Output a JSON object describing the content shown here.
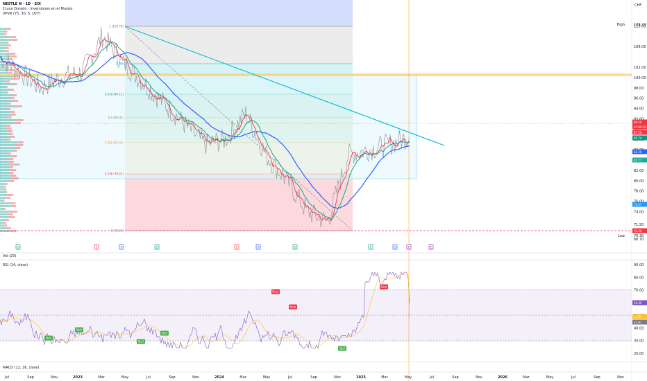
{
  "header": {
    "title": "NESTLE N · 1D · SIX",
    "indicator1": "Cruce Dorado - Inversiones en el Mundo",
    "indicator2": "VPVR (75, 30, 5, UD*)",
    "currency": "CHF",
    "vol_label": "Vol (20)",
    "rsi_label": "RSI (14, close)",
    "macd_label": "MACD (12, 26, close)"
  },
  "price_axis": {
    "ticks": [
      "110.00",
      "106.00",
      "102.00",
      "100.00",
      "98.00",
      "96.00",
      "94.00",
      "92.00",
      "90.00",
      "88.00",
      "86.00",
      "84.00",
      "82.00",
      "80.00",
      "78.00",
      "76.00",
      "74.00",
      "71.50",
      "70.30",
      "68.70"
    ],
    "high_label": "High",
    "high_value": "109.24",
    "low_label": "Low",
    "low_value": "70.30"
  },
  "price_badges": [
    {
      "text": "88.50",
      "color": "#f23645"
    },
    {
      "text": "23:06:36",
      "color": "#f23645"
    },
    {
      "text": "87.28",
      "color": "#f23645"
    },
    {
      "text": "85.74",
      "color": "#089981"
    },
    {
      "text": "83.26",
      "color": "#2962ff"
    },
    {
      "text": "81.77",
      "color": "#22ab94"
    },
    {
      "text": "74.57",
      "color": "#2196f3"
    },
    {
      "text": "70.30",
      "color": "#f23645"
    }
  ],
  "fib_levels": [
    {
      "label": "1 (109.78)",
      "color": "#787b86"
    },
    {
      "label": "0.786",
      "color": "#00bcd4"
    },
    {
      "label": "0.618 (94.15)",
      "color": "#089981"
    },
    {
      "label": "0.5 (89.92)",
      "color": "#4caf50"
    },
    {
      "label": "0.382 (85.68)",
      "color": "#ff9800"
    },
    {
      "label": "0.236 (79.41)",
      "color": "#f23645"
    },
    {
      "label": "0 (70.30)",
      "color": "#787b86"
    }
  ],
  "rsi_axis": {
    "ticks": [
      "90.00",
      "80.00",
      "70.00",
      "60.82",
      "50.00",
      "40.00",
      "30.00",
      "20.00"
    ],
    "badges": [
      {
        "text": "59.40",
        "color": "#7e57c2"
      },
      {
        "text": "47.87",
        "color": "#fbc02d"
      },
      {
        "text": "45.81",
        "color": "#787b86"
      }
    ],
    "signals": [
      {
        "text": "Bull",
        "color": "#4caf50"
      },
      {
        "text": "Bull",
        "color": "#4caf50"
      },
      {
        "text": "Bull",
        "color": "#4caf50"
      },
      {
        "text": "Bull",
        "color": "#4caf50"
      },
      {
        "text": "Bull",
        "color": "#4caf50"
      },
      {
        "text": "Bear",
        "color": "#f23645"
      },
      {
        "text": "Bear",
        "color": "#f23645"
      },
      {
        "text": "Bear",
        "color": "#f23645"
      }
    ]
  },
  "event_markers": [
    {
      "text": "D",
      "color": "#089981"
    },
    {
      "text": "E",
      "color": "#f23645"
    },
    {
      "text": "D",
      "color": "#2962ff"
    },
    {
      "text": "D",
      "color": "#089981"
    },
    {
      "text": "E",
      "color": "#f23645"
    },
    {
      "text": "D",
      "color": "#2962ff"
    },
    {
      "text": "D",
      "color": "#089981"
    },
    {
      "text": "E",
      "color": "#089981"
    },
    {
      "text": "D",
      "color": "#2962ff"
    },
    {
      "text": "E",
      "color": "#9c27b0"
    },
    {
      "text": "E",
      "color": "#9c27b0"
    }
  ],
  "time_axis": [
    "Jul",
    "Sep",
    "Nov",
    "2023",
    "Mar",
    "May",
    "Jul",
    "Sep",
    "Nov",
    "2024",
    "Mar",
    "May",
    "Jul",
    "Sep",
    "Nov",
    "2025",
    "Mar",
    "May",
    "Jul",
    "Sep",
    "Nov",
    "2026",
    "Mar",
    "May",
    "Jul",
    "Sep",
    "Nov"
  ],
  "chart_data": {
    "type": "line",
    "title": "NESTLE N · 1D · SIX",
    "price_series": {
      "name": "Price",
      "x": [
        "2022-07",
        "2022-09",
        "2022-11",
        "2023-01",
        "2023-03",
        "2023-05",
        "2023-07",
        "2023-09",
        "2023-11",
        "2024-01",
        "2024-03",
        "2024-05",
        "2024-07",
        "2024-09",
        "2024-11",
        "2025-01",
        "2025-02",
        "2025-03",
        "2025-04",
        "2025-05",
        "2025-06"
      ],
      "values": [
        104,
        101,
        98,
        100,
        101,
        108,
        103,
        99,
        95,
        91,
        87,
        88,
        93,
        85,
        80,
        74,
        72,
        85,
        86,
        87,
        88.5
      ]
    },
    "ylim": [
      68.7,
      111
    ],
    "ema_fast_last": 87.28,
    "ema_mid_last": 85.74,
    "ema_slow_last": 83.26,
    "last_price": 88.5,
    "high": 109.24,
    "low": 70.3,
    "rsi": {
      "name": "RSI (14, close)",
      "ylim": [
        20,
        90
      ],
      "upper_band": 70,
      "lower_band": 30,
      "last": 59.4,
      "ma_last": 47.87
    }
  }
}
